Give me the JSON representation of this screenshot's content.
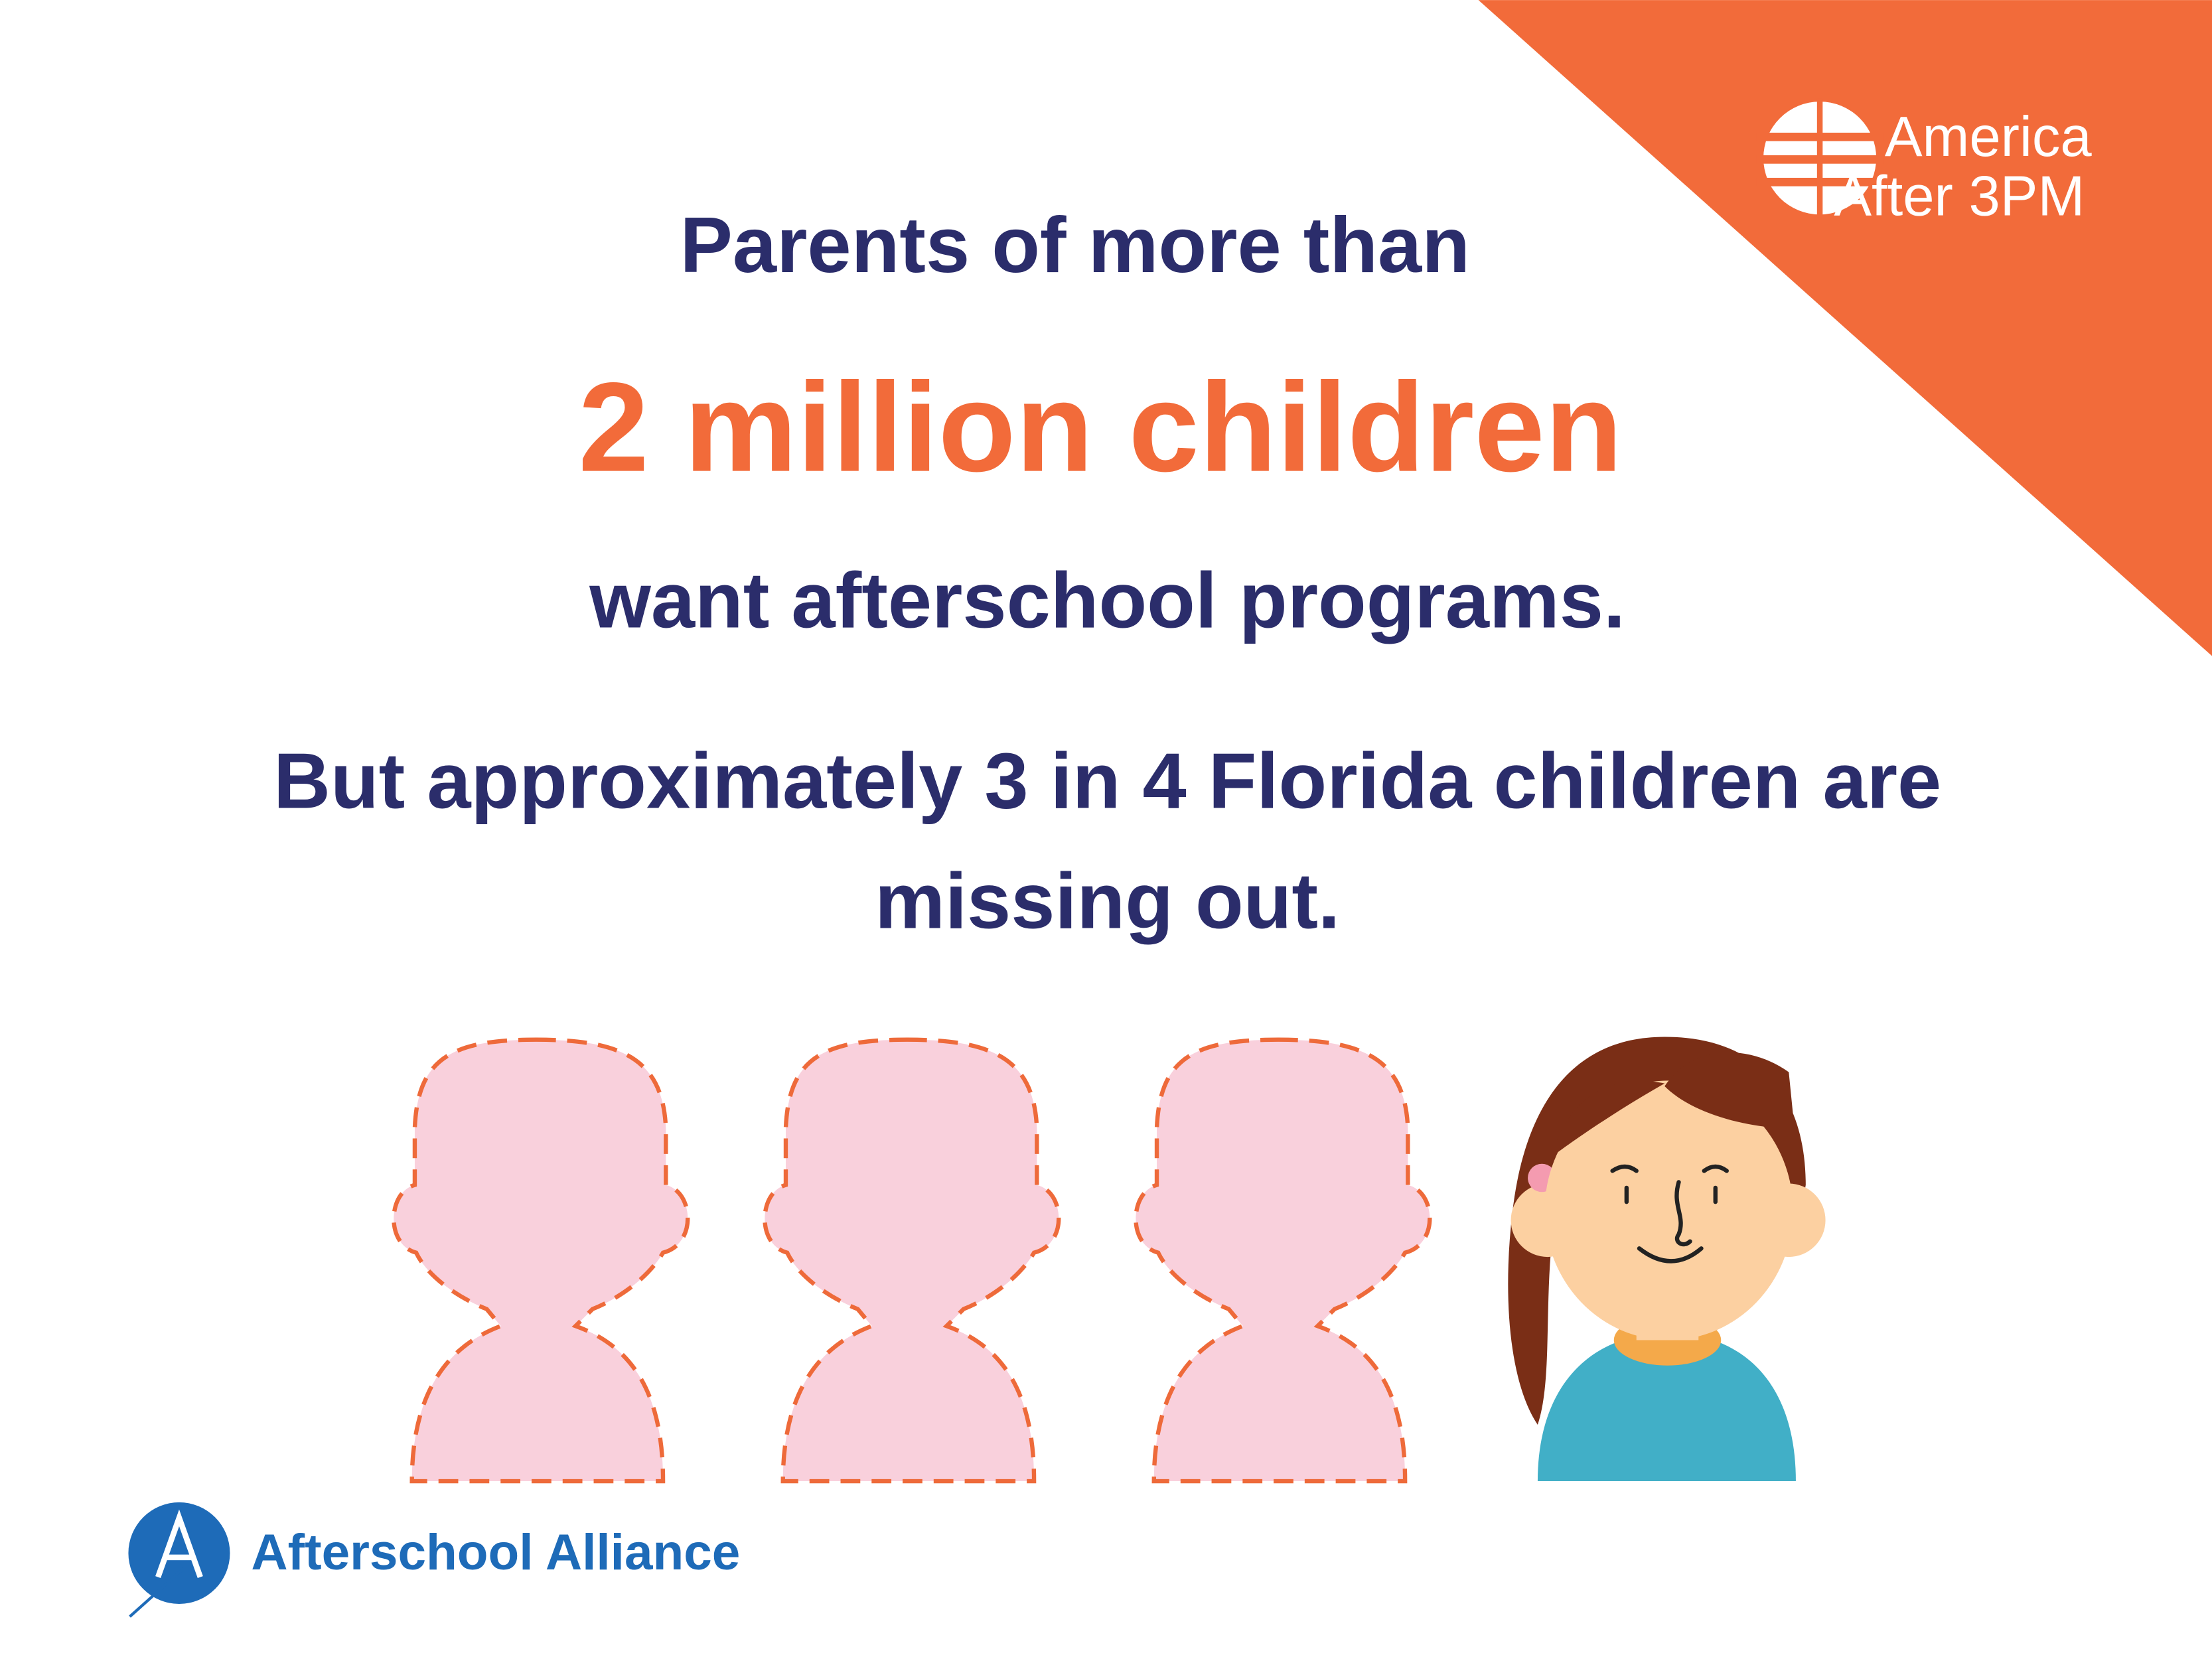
{
  "logo": {
    "line1": "America",
    "line2": "After 3PM"
  },
  "headline": {
    "lead": "Parents of more than",
    "figure": "2 million children",
    "tail": "want afterschool programs."
  },
  "closing": [
    "But approximately 3 in 4 Florida children are",
    "missing out."
  ],
  "footer": {
    "organization": "Afterschool Alliance"
  }
}
